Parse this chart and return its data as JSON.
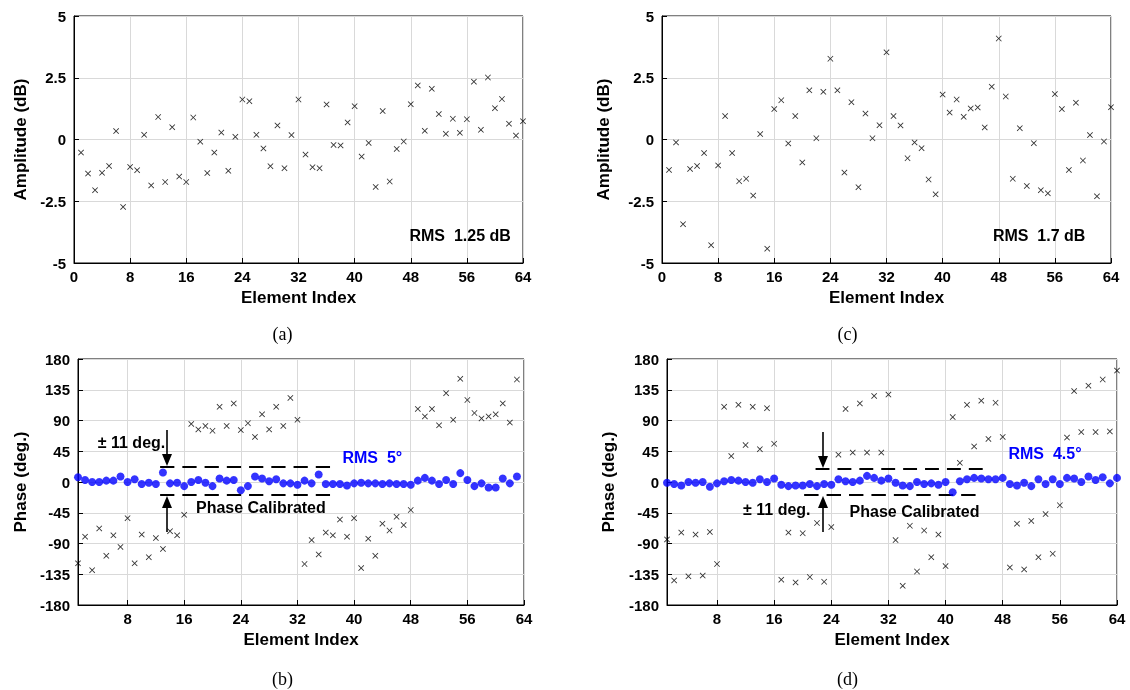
{
  "chart_data": [
    {
      "type": "scatter",
      "xlabel": "Element Index",
      "ylabel": "Amplitude (dB)",
      "xlim": [
        0,
        64
      ],
      "xticks": [
        0,
        8,
        16,
        24,
        32,
        40,
        48,
        56,
        64
      ],
      "ylim": [
        -5,
        5
      ],
      "yticks": [
        -5,
        -2.5,
        0,
        2.5,
        5
      ],
      "grid": true,
      "x": [
        1,
        2,
        3,
        4,
        5,
        6,
        7,
        8,
        9,
        10,
        11,
        12,
        13,
        14,
        15,
        16,
        17,
        18,
        19,
        20,
        21,
        22,
        23,
        24,
        25,
        26,
        27,
        28,
        29,
        30,
        31,
        32,
        33,
        34,
        35,
        36,
        37,
        38,
        39,
        40,
        41,
        42,
        43,
        44,
        45,
        46,
        47,
        48,
        49,
        50,
        51,
        52,
        53,
        54,
        55,
        56,
        57,
        58,
        59,
        60,
        61,
        62,
        63,
        64
      ],
      "series": [
        {
          "color": "#000000",
          "marker": "cross",
          "values": [
            -0.53,
            -1.38,
            -2.05,
            -1.35,
            -1.07,
            0.34,
            -2.73,
            -1.11,
            -1.24,
            0.19,
            -1.86,
            0.91,
            -1.72,
            0.5,
            -1.5,
            -1.72,
            0.89,
            -0.09,
            -1.36,
            -0.53,
            0.28,
            -1.27,
            0.11,
            1.62,
            1.55,
            0.19,
            -0.36,
            -1.08,
            0.57,
            -1.16,
            0.18,
            1.62,
            -0.61,
            -1.12,
            -1.16,
            1.42,
            -0.22,
            -0.24,
            0.69,
            1.35,
            -0.69,
            -0.14,
            -1.92,
            1.15,
            -1.7,
            -0.38,
            -0.08,
            1.43,
            2.19,
            0.35,
            2.05,
            1.03,
            0.23,
            0.84,
            0.27,
            0.82,
            2.34,
            0.39,
            2.51,
            1.27,
            1.64,
            0.64,
            0.16,
            0.74
          ]
        }
      ],
      "annotations": [
        "RMS  1.25 dB",
        "(a)"
      ]
    },
    {
      "type": "scatter",
      "xlabel": "Element Index",
      "ylabel": "Amplitude (dB)",
      "xlim": [
        0,
        64
      ],
      "xticks": [
        0,
        8,
        16,
        24,
        32,
        40,
        48,
        56,
        64
      ],
      "ylim": [
        -5,
        5
      ],
      "yticks": [
        -5,
        -2.5,
        0,
        2.5,
        5
      ],
      "grid": true,
      "x": [
        1,
        2,
        3,
        4,
        5,
        6,
        7,
        8,
        9,
        10,
        11,
        12,
        13,
        14,
        15,
        16,
        17,
        18,
        19,
        20,
        21,
        22,
        23,
        24,
        25,
        26,
        27,
        28,
        29,
        30,
        31,
        32,
        33,
        34,
        35,
        36,
        37,
        38,
        39,
        40,
        41,
        42,
        43,
        44,
        45,
        46,
        47,
        48,
        49,
        50,
        51,
        52,
        53,
        54,
        55,
        56,
        57,
        58,
        59,
        60,
        61,
        62,
        63,
        64
      ],
      "series": [
        {
          "color": "#000000",
          "marker": "cross",
          "values": [
            -1.23,
            -0.12,
            -3.43,
            -1.19,
            -1.07,
            -0.55,
            -4.28,
            -1.05,
            0.95,
            -0.55,
            -1.69,
            -1.59,
            -2.27,
            0.22,
            -4.42,
            1.23,
            1.59,
            -0.16,
            0.95,
            -0.93,
            1.99,
            0.05,
            1.93,
            3.27,
            1.99,
            -1.34,
            1.51,
            -1.93,
            1.05,
            0.05,
            0.58,
            3.53,
            0.95,
            0.57,
            -0.76,
            -0.12,
            -0.35,
            -1.62,
            -2.22,
            1.82,
            1.09,
            1.62,
            0.92,
            1.26,
            1.3,
            0.49,
            2.14,
            4.09,
            1.74,
            -1.59,
            0.46,
            -1.88,
            -0.15,
            -2.05,
            -2.18,
            1.84,
            1.23,
            -1.23,
            1.49,
            -0.85,
            0.18,
            -2.3,
            -0.08,
            1.31
          ]
        }
      ],
      "annotations": [
        "RMS  1.7 dB",
        "(c)"
      ]
    },
    {
      "type": "scatter",
      "xlabel": "Element Index",
      "ylabel": "Phase (deg.)",
      "xlim": [
        1,
        64
      ],
      "xticks": [
        8,
        16,
        24,
        32,
        40,
        48,
        56,
        64
      ],
      "ylim": [
        -180,
        180
      ],
      "yticks": [
        -180,
        -135,
        -90,
        -45,
        0,
        45,
        90,
        135,
        180
      ],
      "grid": true,
      "x": [
        1,
        2,
        3,
        4,
        5,
        6,
        7,
        8,
        9,
        10,
        11,
        12,
        13,
        14,
        15,
        16,
        17,
        18,
        19,
        20,
        21,
        22,
        23,
        24,
        25,
        26,
        27,
        28,
        29,
        30,
        31,
        32,
        33,
        34,
        35,
        36,
        37,
        38,
        39,
        40,
        41,
        42,
        43,
        44,
        45,
        46,
        47,
        48,
        49,
        50,
        51,
        52,
        53,
        54,
        55,
        56,
        57,
        58,
        59,
        60,
        61,
        62,
        63
      ],
      "series": [
        {
          "color": "#000000",
          "marker": "cross",
          "values": [
            -119,
            -80,
            -129,
            -68,
            -108,
            -78,
            -95,
            -53,
            -119,
            -77,
            -110,
            -82,
            -98,
            -72,
            -78,
            -48,
            85,
            77,
            82,
            75,
            110,
            82,
            115,
            76,
            86,
            66,
            99,
            77,
            110,
            82,
            123,
            91,
            -120,
            -85,
            -106,
            -74,
            -78,
            -55,
            -80,
            -53,
            -126,
            -83,
            -108,
            -61,
            -71,
            -51,
            -63,
            -41,
            107,
            96,
            107,
            83,
            130,
            91,
            151,
            120,
            101,
            93,
            96,
            99,
            115,
            87,
            150
          ]
        },
        {
          "color": "#0000ff",
          "marker": "circle",
          "values": [
            7,
            3,
            0,
            0,
            2,
            2,
            8,
            0,
            4,
            -3,
            -1,
            -3,
            14,
            -2,
            -1,
            -6,
            0,
            3,
            -1,
            -6,
            5,
            2,
            3,
            -12,
            -6,
            8,
            5,
            1,
            4,
            -2,
            -2,
            -4,
            2,
            -2,
            11,
            -3,
            -3,
            -3,
            -5,
            -2,
            -1,
            -2,
            -2,
            -3,
            -2,
            -3,
            -3,
            -4,
            2,
            6,
            2,
            -3,
            3,
            -3,
            13,
            3,
            -6,
            -2,
            -8,
            -8,
            5,
            -2,
            8
          ]
        },
        {
          "type": "line",
          "color": "#000000",
          "marker": "none",
          "line_style": "dashed",
          "x": [
            12.6,
            36.6
          ],
          "values": [
            22,
            22
          ]
        },
        {
          "type": "line",
          "color": "#000000",
          "marker": "none",
          "line_style": "dashed",
          "x": [
            12.6,
            36.6
          ],
          "values": [
            -19,
            -19
          ]
        }
      ],
      "annotations": [
        "± 11 deg.",
        "Phase Calibrated",
        "RMS  5°",
        "(b)"
      ]
    },
    {
      "type": "scatter",
      "xlabel": "Element Index",
      "ylabel": "Phase (deg.)",
      "xlim": [
        1,
        64
      ],
      "xticks": [
        8,
        16,
        24,
        32,
        40,
        48,
        56,
        64
      ],
      "ylim": [
        -180,
        180
      ],
      "yticks": [
        -180,
        -135,
        -90,
        -45,
        0,
        45,
        90,
        135,
        180
      ],
      "grid": true,
      "x": [
        1,
        2,
        3,
        4,
        5,
        6,
        7,
        8,
        9,
        10,
        11,
        12,
        13,
        14,
        15,
        16,
        17,
        18,
        19,
        20,
        21,
        22,
        23,
        24,
        25,
        26,
        27,
        28,
        29,
        30,
        31,
        32,
        33,
        34,
        35,
        36,
        37,
        38,
        39,
        40,
        41,
        42,
        43,
        44,
        45,
        46,
        47,
        48,
        49,
        50,
        51,
        52,
        53,
        54,
        55,
        56,
        57,
        58,
        59,
        60,
        61,
        62,
        63,
        64
      ],
      "series": [
        {
          "color": "#000000",
          "marker": "cross",
          "values": [
            -84,
            -144,
            -74,
            -138,
            -77,
            -137,
            -73,
            -120,
            110,
            38,
            113,
            54,
            110,
            48,
            108,
            56,
            -143,
            -74,
            -147,
            -75,
            -139,
            -60,
            -146,
            -66,
            40,
            107,
            43,
            115,
            43,
            126,
            43,
            128,
            -85,
            -152,
            -64,
            -131,
            -71,
            -110,
            -77,
            -123,
            95,
            28,
            113,
            52,
            119,
            63,
            116,
            66,
            -125,
            -61,
            -128,
            -57,
            -110,
            -47,
            -105,
            -34,
            65,
            133,
            73,
            141,
            73,
            150,
            74,
            163
          ]
        },
        {
          "color": "#0000ff",
          "marker": "circle",
          "values": [
            -1,
            -3,
            -5,
            0,
            -1,
            0,
            -7,
            -2,
            1,
            3,
            2,
            0,
            -1,
            4,
            0,
            5,
            -4,
            -6,
            -5,
            -5,
            -3,
            -6,
            -3,
            -4,
            4,
            1,
            0,
            2,
            9,
            6,
            2,
            5,
            -1,
            -5,
            -6,
            0,
            -3,
            -2,
            -4,
            0,
            -15,
            1,
            4,
            6,
            5,
            4,
            4,
            6,
            -3,
            -5,
            -1,
            -6,
            4,
            -3,
            4,
            -3,
            6,
            5,
            0,
            8,
            3,
            7,
            -2,
            6
          ]
        },
        {
          "type": "line",
          "color": "#000000",
          "marker": "none",
          "line_style": "dashed",
          "x": [
            21.8,
            45.2
          ],
          "values": [
            19,
            19
          ]
        },
        {
          "type": "line",
          "color": "#000000",
          "marker": "none",
          "line_style": "dashed",
          "x": [
            20.2,
            44.2
          ],
          "values": [
            -19,
            -19
          ]
        }
      ],
      "annotations": [
        "± 11 deg.",
        "Phase Calibrated",
        "RMS  4.5°",
        "(d)"
      ]
    }
  ]
}
